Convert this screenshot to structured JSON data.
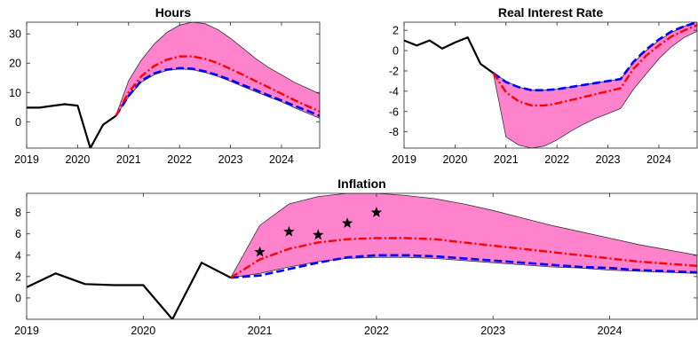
{
  "chart_data": [
    {
      "type": "line",
      "title": "Hours",
      "xlim": [
        2019.0,
        2024.75
      ],
      "ylim": [
        -9,
        34
      ],
      "xticks": [
        "2019",
        "2020",
        "2021",
        "2022",
        "2023",
        "2024"
      ],
      "yticks": [
        "0",
        "10",
        "20",
        "30"
      ],
      "history": {
        "x": [
          2019.0,
          2019.25,
          2019.5,
          2019.75,
          2020.0,
          2020.25,
          2020.5,
          2020.75
        ],
        "y": [
          4.8,
          4.8,
          5.4,
          6.0,
          5.5,
          -9.0,
          -1.0,
          2.0
        ]
      },
      "band": {
        "x": [
          2020.75,
          2021.0,
          2021.25,
          2021.5,
          2021.75,
          2022.0,
          2022.25,
          2022.5,
          2022.75,
          2023.0,
          2023.25,
          2023.5,
          2023.75,
          2024.0,
          2024.25,
          2024.5,
          2024.75
        ],
        "upper": [
          2.0,
          14.0,
          21.0,
          26.5,
          30.5,
          33.0,
          34.0,
          33.5,
          31.5,
          28.5,
          25.0,
          21.5,
          18.5,
          16.0,
          13.5,
          11.5,
          9.5
        ],
        "lower": [
          2.0,
          8.5,
          13.5,
          16.0,
          17.5,
          18.0,
          17.8,
          16.8,
          15.5,
          13.8,
          12.0,
          10.2,
          8.5,
          6.8,
          4.8,
          3.0,
          1.2
        ]
      },
      "median": {
        "x": [
          2020.75,
          2021.0,
          2021.25,
          2021.5,
          2021.75,
          2022.0,
          2022.25,
          2022.5,
          2022.75,
          2023.0,
          2023.25,
          2023.5,
          2023.75,
          2024.0,
          2024.25,
          2024.5,
          2024.75
        ],
        "y": [
          2.0,
          10.0,
          15.5,
          19.0,
          21.2,
          22.3,
          22.3,
          21.5,
          20.0,
          18.0,
          16.0,
          13.8,
          11.7,
          9.6,
          7.4,
          5.4,
          3.5
        ]
      },
      "counterfactual": {
        "x": [
          2020.75,
          2021.0,
          2021.25,
          2021.5,
          2021.75,
          2022.0,
          2022.25,
          2022.5,
          2022.75,
          2023.0,
          2023.25,
          2023.5,
          2023.75,
          2024.0,
          2024.25,
          2024.5,
          2024.75
        ],
        "y": [
          2.0,
          8.8,
          14.0,
          16.5,
          17.8,
          18.3,
          18.1,
          17.2,
          15.9,
          14.3,
          12.5,
          10.8,
          9.0,
          7.3,
          5.5,
          3.8,
          2.0
        ]
      }
    },
    {
      "type": "line",
      "title": "Real Interest Rate",
      "xlim": [
        2019.0,
        2024.75
      ],
      "ylim": [
        -9.6,
        2.8
      ],
      "xticks": [
        "2019",
        "2020",
        "2021",
        "2022",
        "2023",
        "2024"
      ],
      "yticks": [
        "2",
        "0",
        "-2",
        "-4",
        "-6",
        "-8"
      ],
      "history": {
        "x": [
          2019.0,
          2019.25,
          2019.5,
          2019.75,
          2020.0,
          2020.25,
          2020.5,
          2020.75
        ],
        "y": [
          1.0,
          0.5,
          1.0,
          0.2,
          0.8,
          1.3,
          -1.3,
          -2.2
        ]
      },
      "band": {
        "x": [
          2020.75,
          2021.0,
          2021.25,
          2021.5,
          2021.75,
          2022.0,
          2022.25,
          2022.5,
          2022.75,
          2023.0,
          2023.25,
          2023.5,
          2023.75,
          2024.0,
          2024.25,
          2024.5,
          2024.75
        ],
        "upper": [
          -2.2,
          -3.0,
          -3.6,
          -3.9,
          -3.9,
          -3.8,
          -3.6,
          -3.4,
          -3.2,
          -3.0,
          -2.8,
          -1.2,
          0.0,
          1.0,
          1.8,
          2.4,
          2.9
        ],
        "lower": [
          -2.2,
          -8.5,
          -9.3,
          -9.6,
          -9.4,
          -8.8,
          -8.0,
          -7.3,
          -6.7,
          -6.2,
          -5.7,
          -3.8,
          -2.3,
          -0.8,
          0.4,
          1.3,
          1.9
        ]
      },
      "median": {
        "x": [
          2020.75,
          2021.0,
          2021.25,
          2021.5,
          2021.75,
          2022.0,
          2022.25,
          2022.5,
          2022.75,
          2023.0,
          2023.25,
          2023.5,
          2023.75,
          2024.0,
          2024.25,
          2024.5,
          2024.75
        ],
        "y": [
          -2.2,
          -4.1,
          -5.0,
          -5.4,
          -5.4,
          -5.2,
          -4.9,
          -4.6,
          -4.3,
          -4.0,
          -3.7,
          -1.8,
          -0.5,
          0.5,
          1.4,
          2.0,
          2.5
        ]
      },
      "counterfactual": {
        "x": [
          2020.75,
          2021.0,
          2021.25,
          2021.5,
          2021.75,
          2022.0,
          2022.25,
          2022.5,
          2022.75,
          2023.0,
          2023.25,
          2023.5,
          2023.75,
          2024.0,
          2024.25,
          2024.5,
          2024.75
        ],
        "y": [
          -2.2,
          -3.1,
          -3.6,
          -3.9,
          -3.9,
          -3.8,
          -3.6,
          -3.4,
          -3.2,
          -3.0,
          -2.8,
          -1.1,
          0.1,
          1.1,
          1.9,
          2.4,
          2.8
        ]
      }
    },
    {
      "type": "line",
      "title": "Inflation",
      "xlim": [
        2019.0,
        2024.75
      ],
      "ylim": [
        -2,
        9.8
      ],
      "xticks": [
        "2019",
        "2020",
        "2021",
        "2022",
        "2023",
        "2024"
      ],
      "yticks": [
        "0",
        "2",
        "4",
        "6",
        "8"
      ],
      "history": {
        "x": [
          2019.0,
          2019.25,
          2019.5,
          2019.75,
          2020.0,
          2020.25,
          2020.5,
          2020.75
        ],
        "y": [
          1.0,
          2.3,
          1.3,
          1.2,
          1.2,
          -2.0,
          3.3,
          1.9
        ]
      },
      "band": {
        "x": [
          2020.75,
          2021.0,
          2021.25,
          2021.5,
          2021.75,
          2022.0,
          2022.25,
          2022.5,
          2022.75,
          2023.0,
          2023.25,
          2023.5,
          2023.75,
          2024.0,
          2024.25,
          2024.5,
          2024.75
        ],
        "upper": [
          1.9,
          6.8,
          8.8,
          9.5,
          9.8,
          9.8,
          9.6,
          9.3,
          8.8,
          8.2,
          7.5,
          6.8,
          6.2,
          5.6,
          5.0,
          4.5,
          4.0
        ],
        "lower": [
          1.9,
          2.3,
          2.9,
          3.4,
          3.7,
          3.8,
          3.8,
          3.7,
          3.5,
          3.3,
          3.1,
          2.9,
          2.8,
          2.6,
          2.5,
          2.4,
          2.3
        ]
      },
      "median": {
        "x": [
          2020.75,
          2021.0,
          2021.25,
          2021.5,
          2021.75,
          2022.0,
          2022.25,
          2022.5,
          2022.75,
          2023.0,
          2023.25,
          2023.5,
          2023.75,
          2024.0,
          2024.25,
          2024.5,
          2024.75
        ],
        "y": [
          1.9,
          3.6,
          4.6,
          5.2,
          5.5,
          5.6,
          5.6,
          5.5,
          5.2,
          4.9,
          4.6,
          4.3,
          4.0,
          3.7,
          3.4,
          3.2,
          3.0
        ]
      },
      "counterfactual": {
        "x": [
          2020.75,
          2021.0,
          2021.25,
          2021.5,
          2021.75,
          2022.0,
          2022.25,
          2022.5,
          2022.75,
          2023.0,
          2023.25,
          2023.5,
          2023.75,
          2024.0,
          2024.25,
          2024.5,
          2024.75
        ],
        "y": [
          1.9,
          2.1,
          2.7,
          3.3,
          3.8,
          4.0,
          4.0,
          3.9,
          3.7,
          3.5,
          3.3,
          3.1,
          2.9,
          2.8,
          2.6,
          2.5,
          2.4
        ]
      },
      "markers": {
        "x": [
          2021.0,
          2021.25,
          2021.5,
          2021.75,
          2022.0
        ],
        "y": [
          4.3,
          6.2,
          5.9,
          7.0,
          8.0
        ]
      }
    }
  ]
}
